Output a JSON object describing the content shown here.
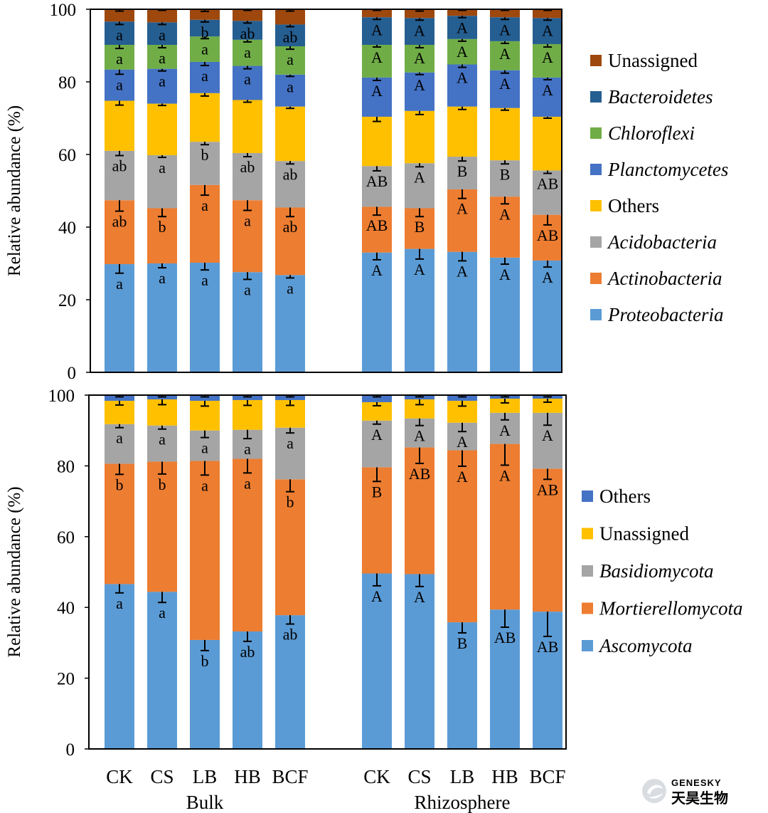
{
  "chart_data": [
    {
      "type": "stacked-bar",
      "ylabel": "Relative abundance (%)",
      "ylim": [
        0,
        100
      ],
      "yticks": [
        "0",
        "20",
        "40",
        "60",
        "80",
        "100"
      ],
      "groups": [
        {
          "name": "Bulk",
          "categories": [
            "CK",
            "CS",
            "LB",
            "HB",
            "BCF"
          ]
        },
        {
          "name": "Rhizosphere",
          "categories": [
            "CK",
            "CS",
            "LB",
            "HB",
            "BCF"
          ]
        }
      ],
      "series": [
        {
          "name": "Proteobacteria",
          "italic": true,
          "color": "#5B9BD5",
          "values": [
            29.8,
            30.0,
            30.2,
            27.6,
            26.8,
            33.0,
            34.0,
            33.2,
            31.6,
            30.8
          ],
          "labels": [
            "a",
            "a",
            "a",
            "a",
            "a",
            "A",
            "A",
            "A",
            "A",
            "A"
          ],
          "errors": [
            2.5,
            1.2,
            2.0,
            2.0,
            0.8,
            2.0,
            2.8,
            2.5,
            1.8,
            1.8
          ]
        },
        {
          "name": "Actinobacteria",
          "italic": true,
          "color": "#ED7D31",
          "values": [
            17.6,
            15.2,
            21.4,
            19.8,
            18.6,
            12.6,
            11.2,
            17.2,
            16.8,
            12.6
          ],
          "labels": [
            "ab",
            "b",
            "a",
            "a",
            "ab",
            "AB",
            "B",
            "A",
            "A",
            "AB"
          ],
          "errors": [
            3.0,
            2.3,
            2.8,
            2.8,
            2.5,
            2.3,
            2.3,
            2.5,
            2.0,
            2.8
          ]
        },
        {
          "name": "Acidobacteria",
          "italic": true,
          "color": "#A5A5A5",
          "values": [
            13.6,
            14.6,
            11.9,
            13.0,
            12.8,
            11.2,
            12.4,
            9.0,
            10.0,
            12.2
          ],
          "labels": [
            "ab",
            "a",
            "b",
            "ab",
            "ab",
            "AB",
            "A",
            "B",
            "B",
            "AB"
          ],
          "errors": [
            1.3,
            0.6,
            0.8,
            1.0,
            0.8,
            1.3,
            1.0,
            1.2,
            1.0,
            0.8
          ]
        },
        {
          "name": "Others",
          "italic": false,
          "color": "#FFC000",
          "values": [
            13.8,
            14.2,
            13.4,
            14.6,
            15.0,
            13.6,
            14.4,
            13.8,
            14.4,
            14.8
          ],
          "labels": [
            "",
            "",
            "",
            "",
            "",
            "",
            "",
            "",
            "",
            ""
          ],
          "errors": [
            1.2,
            0.5,
            0.8,
            0.6,
            0.5,
            1.3,
            1.0,
            0.8,
            0.6,
            0.4
          ]
        },
        {
          "name": "Planctomycetes",
          "italic": true,
          "color": "#4472C4",
          "values": [
            8.6,
            9.6,
            8.6,
            9.4,
            8.8,
            10.8,
            10.6,
            11.6,
            10.4,
            10.8
          ],
          "labels": [
            "a",
            "a",
            "a",
            "a",
            "a",
            "A",
            "A",
            "A",
            "A",
            "A"
          ],
          "errors": [
            1.3,
            0.6,
            1.0,
            0.8,
            0.5,
            0.8,
            0.6,
            0.8,
            0.8,
            0.6
          ]
        },
        {
          "name": "Chloroflexi",
          "italic": true,
          "color": "#70AD47",
          "values": [
            6.8,
            6.6,
            7.0,
            7.2,
            7.8,
            9.0,
            7.6,
            7.0,
            8.0,
            9.2
          ],
          "labels": [
            "a",
            "a",
            "a",
            "a",
            "a",
            "A",
            "A",
            "A",
            "A",
            "A"
          ],
          "errors": [
            1.0,
            0.8,
            0.6,
            0.6,
            0.8,
            0.6,
            0.8,
            0.6,
            0.6,
            0.8
          ]
        },
        {
          "name": "Bacteroidetes",
          "italic": true,
          "color": "#255E91",
          "values": [
            6.4,
            6.2,
            4.6,
            5.2,
            6.0,
            7.6,
            7.4,
            6.4,
            6.6,
            7.2
          ],
          "labels": [
            "a",
            "a",
            "b",
            "ab",
            "ab",
            "A",
            "A",
            "A",
            "A",
            "A"
          ],
          "errors": [
            0.8,
            0.6,
            0.6,
            0.6,
            0.6,
            0.6,
            0.6,
            0.5,
            0.6,
            0.6
          ]
        },
        {
          "name": "Unassigned",
          "italic": false,
          "color": "#9E480E",
          "values": [
            3.4,
            3.6,
            2.8,
            3.2,
            4.2,
            2.2,
            2.4,
            1.8,
            2.2,
            2.4
          ],
          "labels": [
            "",
            "",
            "",
            "",
            "",
            "",
            "",
            "",
            "",
            ""
          ],
          "errors": [
            0.5,
            0.3,
            0.5,
            0.3,
            0.5,
            0.3,
            0.5,
            0.3,
            0.3,
            0.3
          ]
        }
      ],
      "legend_order": [
        "Unassigned",
        "Bacteroidetes",
        "Chloroflexi",
        "Planctomycetes",
        "Others",
        "Acidobacteria",
        "Actinobacteria",
        "Proteobacteria"
      ],
      "legend": "right"
    },
    {
      "type": "stacked-bar",
      "ylabel": "Relative abundance (%)",
      "ylim": [
        0,
        100
      ],
      "yticks": [
        "0",
        "20",
        "40",
        "60",
        "80",
        "100"
      ],
      "groups": [
        {
          "name": "Bulk",
          "categories": [
            "CK",
            "CS",
            "LB",
            "HB",
            "BCF"
          ]
        },
        {
          "name": "Rhizosphere",
          "categories": [
            "CK",
            "CS",
            "LB",
            "HB",
            "BCF"
          ]
        }
      ],
      "series": [
        {
          "name": "Ascomycota",
          "italic": true,
          "color": "#5B9BD5",
          "values": [
            46.6,
            44.4,
            30.8,
            33.2,
            37.8,
            49.6,
            49.4,
            35.8,
            39.4,
            38.8
          ],
          "labels": [
            "a",
            "a",
            "b",
            "ab",
            "ab",
            "A",
            "A",
            "B",
            "AB",
            "AB"
          ],
          "errors": [
            2.5,
            3.0,
            3.0,
            2.8,
            2.5,
            3.5,
            3.5,
            3.0,
            5.0,
            7.0
          ],
          "error_dir": "down"
        },
        {
          "name": "Mortierellomycota",
          "italic": true,
          "color": "#ED7D31",
          "values": [
            34.0,
            36.8,
            50.6,
            48.8,
            38.4,
            30.0,
            35.8,
            48.6,
            46.8,
            40.4
          ],
          "labels": [
            "b",
            "b",
            "a",
            "a",
            "b",
            "B",
            "AB",
            "A",
            "A",
            "AB"
          ],
          "errors": [
            3.0,
            3.5,
            4.0,
            4.0,
            3.5,
            4.0,
            4.5,
            4.5,
            6.0,
            3.0
          ],
          "error_dir": "down"
        },
        {
          "name": "Basidiomycota",
          "italic": true,
          "color": "#A5A5A5",
          "values": [
            11.2,
            10.2,
            8.6,
            8.2,
            14.6,
            13.2,
            8.2,
            7.8,
            8.8,
            15.8
          ],
          "labels": [
            "a",
            "a",
            "a",
            "a",
            "a",
            "A",
            "A",
            "A",
            "A",
            "A"
          ],
          "errors": [
            1.0,
            1.0,
            2.0,
            2.5,
            1.5,
            1.0,
            2.0,
            2.5,
            2.0,
            3.5
          ],
          "error_dir": "down"
        },
        {
          "name": "Unassigned",
          "italic": false,
          "color": "#FFC000",
          "values": [
            6.6,
            7.4,
            8.4,
            8.4,
            7.8,
            5.2,
            5.4,
            6.2,
            4.0,
            4.0
          ],
          "labels": [
            "",
            "",
            "",
            "",
            "",
            "",
            "",
            "",
            "",
            ""
          ],
          "errors": [
            1.2,
            1.5,
            1.5,
            1.5,
            1.5,
            1.0,
            1.5,
            1.5,
            1.2,
            1.0
          ],
          "error_dir": "down"
        },
        {
          "name": "Others",
          "italic": false,
          "color": "#4472C4",
          "values": [
            1.6,
            1.2,
            1.6,
            1.4,
            1.4,
            2.0,
            1.2,
            1.6,
            1.0,
            1.0
          ],
          "labels": [
            "",
            "",
            "",
            "",
            "",
            "",
            "",
            "",
            "",
            ""
          ],
          "errors": [
            0.5,
            0.5,
            0.5,
            0.5,
            0.5,
            0.5,
            0.5,
            0.5,
            0.5,
            0.5
          ],
          "error_dir": "down"
        }
      ],
      "legend_order": [
        "Others",
        "Unassigned",
        "Basidiomycota",
        "Mortierellomycota",
        "Ascomycota"
      ],
      "legend": "right"
    }
  ],
  "watermark": {
    "brand": "GENESKY",
    "cn": "天昊生物"
  }
}
